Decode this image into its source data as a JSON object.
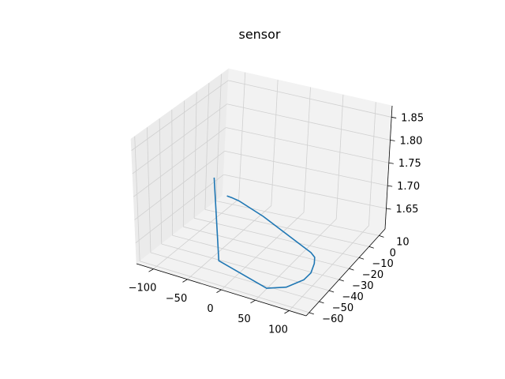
{
  "chart_data": {
    "type": "line",
    "projection": "3d",
    "title": "sensor",
    "xlabel": "",
    "ylabel": "",
    "zlabel": "",
    "x_ticks": [
      "−100",
      "−50",
      "0",
      "50",
      "100"
    ],
    "y_ticks": [
      "−60",
      "−50",
      "−40",
      "−30",
      "−20",
      "−10",
      "0",
      "10"
    ],
    "z_ticks": [
      "1.65",
      "1.70",
      "1.75",
      "1.80",
      "1.85"
    ],
    "xlim": [
      -125,
      125
    ],
    "ylim": [
      -63,
      16
    ],
    "zlim": [
      1.605,
      1.875
    ],
    "grid": true,
    "series": [
      {
        "color": "#1f77b4",
        "points": [
          {
            "x": -112.9,
            "y": 12.7,
            "z": 1.6165
          },
          {
            "x": -104.1,
            "y": 12.4,
            "z": 1.6163
          },
          {
            "x": -93.4,
            "y": 11.7,
            "z": 1.6161
          },
          {
            "x": -47.5,
            "y": 5.1,
            "z": 1.6159
          },
          {
            "x": 51.8,
            "y": -13.1,
            "z": 1.6162
          },
          {
            "x": 62.4,
            "y": -16.3,
            "z": 1.6167
          },
          {
            "x": 70.8,
            "y": -21.9,
            "z": 1.6172
          },
          {
            "x": 80.3,
            "y": -31.0,
            "z": 1.6183
          },
          {
            "x": 82.8,
            "y": -39.1,
            "z": 1.6196
          },
          {
            "x": 75.1,
            "y": -50.5,
            "z": 1.6215
          },
          {
            "x": 56.4,
            "y": -56.8,
            "z": 1.6224
          },
          {
            "x": -31.1,
            "y": -45.9,
            "z": 1.6221
          },
          {
            "x": -51.9,
            "y": -36.2,
            "z": 1.7752
          }
        ]
      }
    ]
  }
}
